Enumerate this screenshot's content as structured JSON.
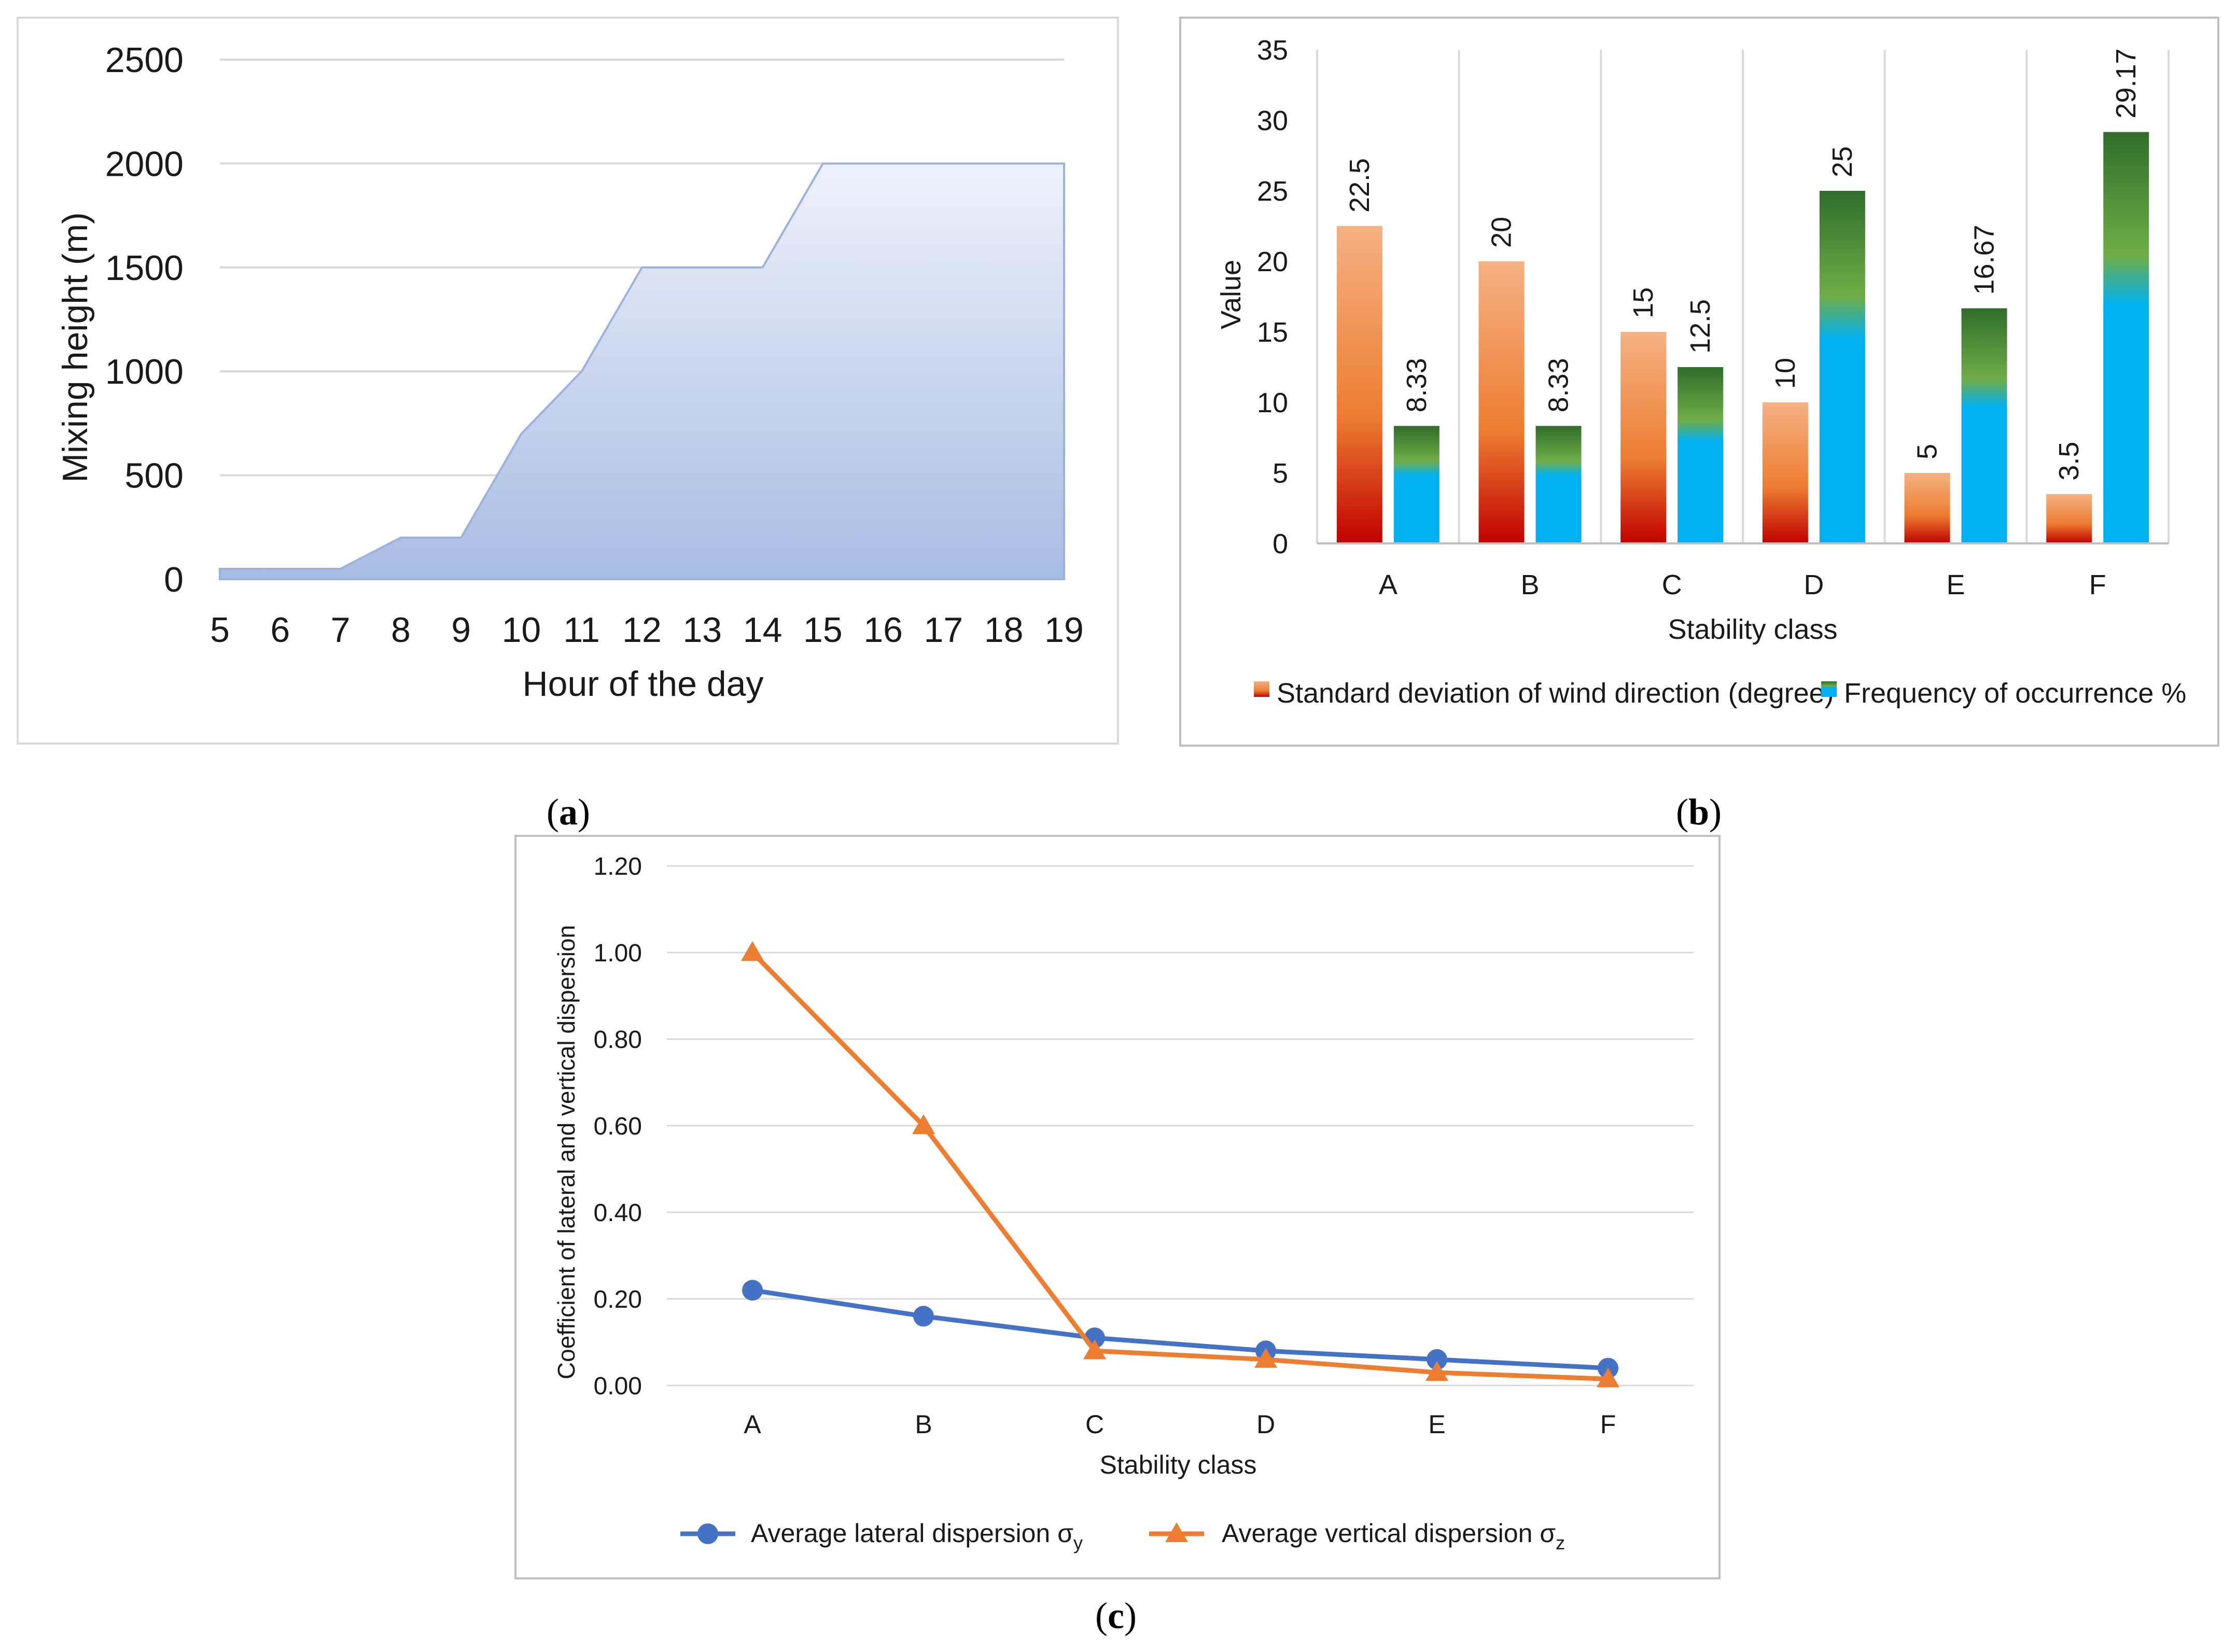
{
  "chart_data": [
    {
      "type": "area",
      "panel_label": "a",
      "title": "",
      "xlabel": "Hour of the day",
      "ylabel": "Mixing height (m)",
      "x": [
        5,
        6,
        7,
        8,
        9,
        10,
        11,
        12,
        13,
        14,
        15,
        16,
        17,
        18,
        19
      ],
      "values": [
        50,
        50,
        50,
        200,
        200,
        700,
        1000,
        1500,
        1500,
        1500,
        2000,
        2000,
        2000,
        2000,
        2000
      ],
      "xticks": [
        "5",
        "6",
        "7",
        "8",
        "9",
        "10",
        "11",
        "12",
        "13",
        "14",
        "15",
        "16",
        "17",
        "18",
        "19"
      ],
      "yticks": [
        "0",
        "500",
        "1000",
        "1500",
        "2000",
        "2500"
      ],
      "ylim": [
        0,
        2500
      ],
      "grid": true,
      "colors": {
        "fill_top": "#eef1fa",
        "fill_bottom": "#a8bce2",
        "line": "#9cb2de",
        "grid": "#d9d9d9",
        "frame": "#d9d9d9"
      }
    },
    {
      "type": "bar",
      "panel_label": "b",
      "title": "",
      "xlabel": "Stability class",
      "ylabel": "Value",
      "categories": [
        "A",
        "B",
        "C",
        "D",
        "E",
        "F"
      ],
      "series": [
        {
          "name": "Standard deviation of wind direction (degree)",
          "values": [
            22.5,
            20,
            15,
            10,
            5,
            3.5
          ],
          "labels": [
            "22.5",
            "20",
            "15",
            "10",
            "5",
            "3.5"
          ],
          "color_top": "#f4b183",
          "color_mid": "#ed7d31",
          "color_bottom": "#c00000"
        },
        {
          "name": "Frequency of occurrence %",
          "values": [
            8.33,
            8.33,
            12.5,
            25,
            16.67,
            29.17
          ],
          "labels": [
            "8.33",
            "8.33",
            "12.5",
            "25",
            "16.67",
            "29.17"
          ],
          "color_top": "#2f6d2b",
          "color_mid": "#70ad47",
          "color_bottom": "#00b0f0"
        }
      ],
      "yticks": [
        "0",
        "5",
        "10",
        "15",
        "20",
        "25",
        "30",
        "35"
      ],
      "ylim": [
        0,
        35
      ],
      "grid": "vertical separators",
      "legend": "bottom",
      "colors": {
        "separator": "#d9d9d9",
        "frame": "#bfbfbf"
      }
    },
    {
      "type": "line",
      "panel_label": "c",
      "title": "",
      "xlabel": "Stability class",
      "ylabel": "Coefficient of lateral and vertical dispersion",
      "categories": [
        "A",
        "B",
        "C",
        "D",
        "E",
        "F"
      ],
      "series": [
        {
          "name": "Average lateral dispersion σ",
          "subscript": "y",
          "values": [
            0.22,
            0.16,
            0.11,
            0.08,
            0.06,
            0.04
          ],
          "marker": "circle",
          "color": "#4472c4"
        },
        {
          "name": "Average vertical dispersion σ",
          "subscript": "z",
          "values": [
            1.0,
            0.6,
            0.08,
            0.06,
            0.03,
            0.015
          ],
          "marker": "triangle",
          "color": "#ed7d31"
        }
      ],
      "yticks": [
        "0.00",
        "0.20",
        "0.40",
        "0.60",
        "0.80",
        "1.00",
        "1.20"
      ],
      "ylim": [
        0,
        1.2
      ],
      "grid": true,
      "legend": "bottom",
      "colors": {
        "grid": "#d9d9d9",
        "frame": "#bfbfbf"
      }
    }
  ]
}
